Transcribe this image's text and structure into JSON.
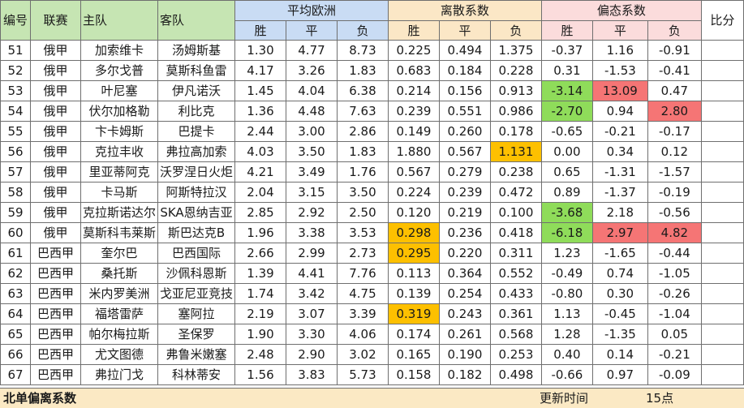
{
  "headers": {
    "id": "编号",
    "league": "联赛",
    "home": "主队",
    "away": "客队",
    "avg_odds": "平均欧洲",
    "dispersion": "离散系数",
    "bias": "偏态系数",
    "score": "比分",
    "win": "胜",
    "draw": "平",
    "loss": "负"
  },
  "rows": [
    {
      "id": "51",
      "league": "俄甲",
      "home": "加索维卡",
      "away": "汤姆斯基",
      "o": [
        "1.30",
        "4.77",
        "8.73"
      ],
      "d": [
        "0.225",
        "0.494",
        "1.375"
      ],
      "b": [
        "-0.37",
        "1.16",
        "-0.91"
      ],
      "hl": [
        "",
        "",
        "",
        "",
        "",
        "",
        "",
        "",
        ""
      ]
    },
    {
      "id": "52",
      "league": "俄甲",
      "home": "多尔戈普",
      "away": "莫斯科鱼雷",
      "o": [
        "4.17",
        "3.26",
        "1.83"
      ],
      "d": [
        "0.683",
        "0.184",
        "0.228"
      ],
      "b": [
        "0.31",
        "-1.53",
        "-0.41"
      ],
      "hl": [
        "",
        "",
        "",
        "",
        "",
        "",
        "",
        "",
        ""
      ]
    },
    {
      "id": "53",
      "league": "俄甲",
      "home": "叶尼塞",
      "away": "伊凡诺沃",
      "o": [
        "1.45",
        "4.04",
        "6.38"
      ],
      "d": [
        "0.214",
        "0.156",
        "0.913"
      ],
      "b": [
        "-3.14",
        "13.09",
        "0.47"
      ],
      "hl": [
        "",
        "",
        "",
        "",
        "",
        "",
        "g",
        "r",
        ""
      ]
    },
    {
      "id": "54",
      "league": "俄甲",
      "home": "伏尔加格勒",
      "away": "利比克",
      "o": [
        "1.36",
        "4.48",
        "7.63"
      ],
      "d": [
        "0.239",
        "0.551",
        "0.986"
      ],
      "b": [
        "-2.70",
        "0.94",
        "2.80"
      ],
      "hl": [
        "",
        "",
        "",
        "",
        "",
        "",
        "g",
        "",
        "r"
      ]
    },
    {
      "id": "55",
      "league": "俄甲",
      "home": "卞卡姆斯",
      "away": "巴提卡",
      "o": [
        "2.44",
        "3.00",
        "2.86"
      ],
      "d": [
        "0.149",
        "0.260",
        "0.178"
      ],
      "b": [
        "-0.65",
        "-0.21",
        "-0.17"
      ],
      "hl": [
        "",
        "",
        "",
        "",
        "",
        "",
        "",
        "",
        ""
      ]
    },
    {
      "id": "56",
      "league": "俄甲",
      "home": "克拉丰收",
      "away": "弗拉高加索",
      "o": [
        "4.03",
        "3.50",
        "1.83"
      ],
      "d": [
        "1.880",
        "0.567",
        "1.131"
      ],
      "b": [
        "0.00",
        "0.34",
        "0.12"
      ],
      "hl": [
        "",
        "",
        "",
        "",
        "",
        "o",
        "",
        "",
        ""
      ]
    },
    {
      "id": "57",
      "league": "俄甲",
      "home": "里亚蒂阿克",
      "away": "沃罗涅日火炬",
      "o": [
        "4.21",
        "3.49",
        "1.76"
      ],
      "d": [
        "0.567",
        "0.279",
        "0.238"
      ],
      "b": [
        "0.65",
        "-1.31",
        "-1.57"
      ],
      "hl": [
        "",
        "",
        "",
        "",
        "",
        "",
        "",
        "",
        ""
      ]
    },
    {
      "id": "58",
      "league": "俄甲",
      "home": "卡马斯",
      "away": "阿斯特拉汉",
      "o": [
        "2.04",
        "3.15",
        "3.50"
      ],
      "d": [
        "0.224",
        "0.239",
        "0.472"
      ],
      "b": [
        "0.89",
        "-1.37",
        "-0.19"
      ],
      "hl": [
        "",
        "",
        "",
        "",
        "",
        "",
        "",
        "",
        ""
      ]
    },
    {
      "id": "59",
      "league": "俄甲",
      "home": "克拉斯诺达尔",
      "away": "SKA恩纳吉亚",
      "o": [
        "2.85",
        "2.92",
        "2.50"
      ],
      "d": [
        "0.120",
        "0.219",
        "0.100"
      ],
      "b": [
        "-3.68",
        "2.18",
        "-0.56"
      ],
      "hl": [
        "",
        "",
        "",
        "",
        "",
        "",
        "g",
        "",
        ""
      ]
    },
    {
      "id": "60",
      "league": "俄甲",
      "home": "莫斯科韦莱斯",
      "away": "斯巴达克B",
      "o": [
        "1.96",
        "3.38",
        "3.53"
      ],
      "d": [
        "0.298",
        "0.236",
        "0.418"
      ],
      "b": [
        "-6.18",
        "2.97",
        "4.82"
      ],
      "hl": [
        "",
        "",
        "",
        "o",
        "",
        "",
        "g",
        "r",
        "r"
      ]
    },
    {
      "id": "61",
      "league": "巴西甲",
      "home": "奎尔巴",
      "away": "巴西国际",
      "o": [
        "2.66",
        "2.99",
        "2.73"
      ],
      "d": [
        "0.295",
        "0.220",
        "0.311"
      ],
      "b": [
        "1.23",
        "-1.65",
        "-0.44"
      ],
      "hl": [
        "",
        "",
        "",
        "o",
        "",
        "",
        "",
        "",
        ""
      ]
    },
    {
      "id": "62",
      "league": "巴西甲",
      "home": "桑托斯",
      "away": "沙佩科恩斯",
      "o": [
        "1.39",
        "4.41",
        "7.76"
      ],
      "d": [
        "0.113",
        "0.364",
        "0.552"
      ],
      "b": [
        "-0.49",
        "0.74",
        "-1.05"
      ],
      "hl": [
        "",
        "",
        "",
        "",
        "",
        "",
        "",
        "",
        ""
      ]
    },
    {
      "id": "63",
      "league": "巴西甲",
      "home": "米内罗美洲",
      "away": "戈亚尼亚竞技",
      "o": [
        "1.74",
        "3.42",
        "4.75"
      ],
      "d": [
        "0.139",
        "0.254",
        "0.433"
      ],
      "b": [
        "-0.80",
        "0.30",
        "-0.26"
      ],
      "hl": [
        "",
        "",
        "",
        "",
        "",
        "",
        "",
        "",
        ""
      ]
    },
    {
      "id": "64",
      "league": "巴西甲",
      "home": "福塔雷萨",
      "away": "塞阿拉",
      "o": [
        "2.19",
        "3.07",
        "3.39"
      ],
      "d": [
        "0.319",
        "0.243",
        "0.361"
      ],
      "b": [
        "1.13",
        "-0.45",
        "-1.04"
      ],
      "hl": [
        "",
        "",
        "",
        "o",
        "",
        "",
        "",
        "",
        ""
      ]
    },
    {
      "id": "65",
      "league": "巴西甲",
      "home": "帕尔梅拉斯",
      "away": "圣保罗",
      "o": [
        "1.90",
        "3.30",
        "4.06"
      ],
      "d": [
        "0.174",
        "0.261",
        "0.568"
      ],
      "b": [
        "1.28",
        "-1.35",
        "0.05"
      ],
      "hl": [
        "",
        "",
        "",
        "",
        "",
        "",
        "",
        "",
        ""
      ]
    },
    {
      "id": "66",
      "league": "巴西甲",
      "home": "尤文图德",
      "away": "弗鲁米嫩塞",
      "o": [
        "2.48",
        "2.90",
        "3.02"
      ],
      "d": [
        "0.165",
        "0.190",
        "0.253"
      ],
      "b": [
        "0.40",
        "0.14",
        "-0.21"
      ],
      "hl": [
        "",
        "",
        "",
        "",
        "",
        "",
        "",
        "",
        ""
      ]
    },
    {
      "id": "67",
      "league": "巴西甲",
      "home": "弗拉门戈",
      "away": "科林蒂安",
      "o": [
        "1.56",
        "3.83",
        "5.73"
      ],
      "d": [
        "0.158",
        "0.182",
        "0.498"
      ],
      "b": [
        "-0.66",
        "0.97",
        "-0.09"
      ],
      "hl": [
        "",
        "",
        "",
        "",
        "",
        "",
        "",
        "",
        ""
      ]
    }
  ],
  "footer": {
    "title": "北单偏离系数",
    "update_label": "更新时间",
    "update_value": "15点"
  },
  "colors": {
    "green": "#8fdc5a",
    "orange": "#fdc000",
    "red": "#f57575"
  }
}
